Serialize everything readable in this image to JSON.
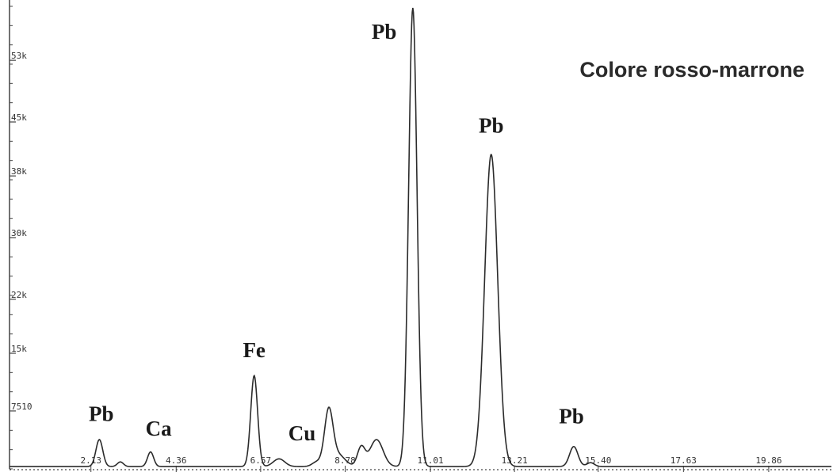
{
  "chart_data": {
    "type": "line",
    "title": "Colore rosso-marrone",
    "xlabel": "",
    "ylabel": "",
    "xlim": [
      0,
      21.5
    ],
    "ylim": [
      0,
      60000
    ],
    "y_ticks": [
      {
        "value": 7510,
        "label": "7510"
      },
      {
        "value": 15000,
        "label": "15k"
      },
      {
        "value": 22000,
        "label": "22k"
      },
      {
        "value": 30000,
        "label": "30k"
      },
      {
        "value": 38000,
        "label": "38k"
      },
      {
        "value": 45000,
        "label": "45k"
      },
      {
        "value": 53000,
        "label": "53k"
      }
    ],
    "x_ticks": [
      {
        "value": 2.13,
        "label": "2.13"
      },
      {
        "value": 4.36,
        "label": "4.36"
      },
      {
        "value": 6.57,
        "label": "6.57"
      },
      {
        "value": 8.78,
        "label": "8.78"
      },
      {
        "value": 11.01,
        "label": "11.01"
      },
      {
        "value": 13.21,
        "label": "13.21"
      },
      {
        "value": 15.4,
        "label": "15.40"
      },
      {
        "value": 17.63,
        "label": "17.63"
      },
      {
        "value": 19.86,
        "label": "19.86"
      }
    ],
    "peaks": [
      {
        "x": 2.35,
        "y": 3500,
        "width": 0.09,
        "label": "Pb"
      },
      {
        "x": 2.9,
        "y": 600,
        "width": 0.08,
        "label": ""
      },
      {
        "x": 3.69,
        "y": 1900,
        "width": 0.08,
        "label": "Ca"
      },
      {
        "x": 6.4,
        "y": 11800,
        "width": 0.09,
        "label": "Fe"
      },
      {
        "x": 7.05,
        "y": 1000,
        "width": 0.15,
        "label": ""
      },
      {
        "x": 8.04,
        "y": 600,
        "width": 0.12,
        "label": "Cu"
      },
      {
        "x": 8.6,
        "y": 1500,
        "width": 0.18,
        "label": ""
      },
      {
        "x": 8.35,
        "y": 7100,
        "width": 0.11,
        "label": ""
      },
      {
        "x": 9.2,
        "y": 2500,
        "width": 0.1,
        "label": ""
      },
      {
        "x": 9.6,
        "y": 3500,
        "width": 0.17,
        "label": ""
      },
      {
        "x": 10.55,
        "y": 59500,
        "width": 0.11,
        "label": "Pb"
      },
      {
        "x": 12.6,
        "y": 40500,
        "width": 0.17,
        "label": "Pb"
      },
      {
        "x": 14.76,
        "y": 2600,
        "width": 0.11,
        "label": "Pb"
      },
      {
        "x": 15.2,
        "y": 500,
        "width": 0.1,
        "label": ""
      }
    ],
    "label_positions": [
      {
        "text": "Pb",
        "x": 2.4,
        "y": 6200
      },
      {
        "text": "Ca",
        "x": 3.9,
        "y": 4300
      },
      {
        "text": "Fe",
        "x": 6.4,
        "y": 14500
      },
      {
        "text": "Cu",
        "x": 7.65,
        "y": 3700
      },
      {
        "text": "Pb",
        "x": 9.8,
        "y": 55800
      },
      {
        "text": "Pb",
        "x": 12.6,
        "y": 43600
      },
      {
        "text": "Pb",
        "x": 14.7,
        "y": 5900
      }
    ],
    "baseline": 300,
    "grid": false,
    "legend": "none",
    "colors": {
      "line": "#2b2b2b",
      "axis": "#444444",
      "background": "#ffffff"
    }
  }
}
